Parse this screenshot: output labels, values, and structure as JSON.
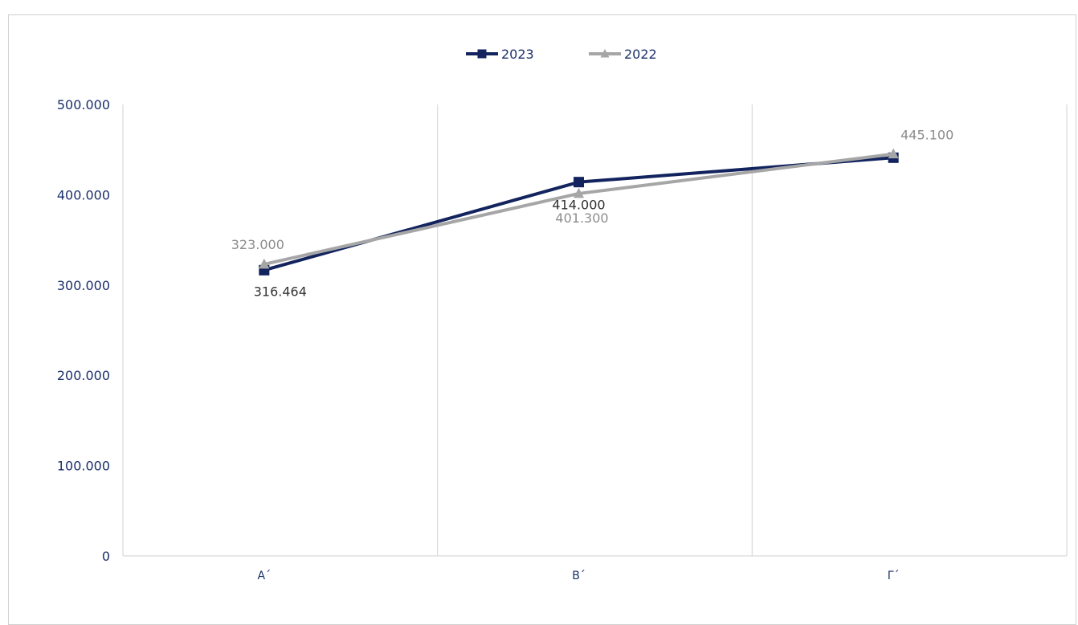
{
  "chart_data": {
    "type": "line",
    "title": "",
    "xlabel": "",
    "ylabel": "",
    "categories": [
      "Α΄",
      "Β΄",
      "Γ΄"
    ],
    "ylim": [
      0,
      500000
    ],
    "yticks": [
      0,
      100000,
      200000,
      300000,
      400000,
      500000
    ],
    "ytick_labels": [
      "0",
      "100.000",
      "200.000",
      "300.000",
      "400.000",
      "500.000"
    ],
    "grid": "vertical",
    "legend_position": "top-center",
    "series": [
      {
        "name": "2023",
        "values": [
          316464,
          414000,
          441000
        ],
        "data_labels": [
          "316.464",
          "414.000",
          ""
        ],
        "color": "#12235e",
        "marker": "square"
      },
      {
        "name": "2022",
        "values": [
          323000,
          401300,
          445100
        ],
        "data_labels": [
          "323.000",
          "401.300",
          "445.100"
        ],
        "color": "#a6a6a6",
        "marker": "triangle"
      }
    ]
  }
}
